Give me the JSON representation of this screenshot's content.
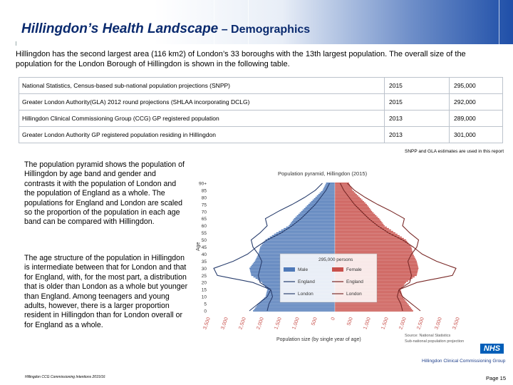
{
  "header": {
    "title_main": "Hillingdon’s Health Landscape",
    "title_sub": " – Demographics"
  },
  "intro": "Hillingdon has the second largest area (116 km2) of London’s 33 boroughs with the 13th largest population. The overall size of the population for the London Borough of Hillingdon is shown in the following table.",
  "table": {
    "rows": [
      {
        "source": "National Statistics, Census-based sub-national population projections (SNPP)",
        "year": "2015",
        "value": "295,000"
      },
      {
        "source": "Greater London Authority(GLA) 2012 round projections (SHLAA incorporating DCLG)",
        "year": "2015",
        "value": "292,000"
      },
      {
        "source": "Hillingdon Clinical Commissioning Group (CCG) GP registered population",
        "year": "2013",
        "value": "289,000"
      },
      {
        "source": "Greater London Authority GP registered population residing in Hillingdon",
        "year": "2013",
        "value": "301,000"
      }
    ],
    "note": "SNPP and GLA estimates are used in this report"
  },
  "paragraphs": {
    "p1": "The population pyramid shows the population of Hillingdon by age band and gender and contrasts it with the population of London and the population of England as a whole. The populations for England and London are scaled so the proportion of the population in each age band can be compared with Hillingdon.",
    "p2": "The age structure of the population in Hillingdon is intermediate between that for London and that for England, with, for the most part, a distribution that is older than London as a whole but younger than England. Among teenagers and young adults, however, there is a larger proportion resident in Hillingdon than for London overall or for England as a whole."
  },
  "chart_data": {
    "type": "bar",
    "orientation": "horizontal-pyramid",
    "title": "Population pyramid, Hillingdon (2015)",
    "ylabel": "Age",
    "xlabel": "Population size (by single year of age)",
    "y_ticks": [
      "90+",
      "85",
      "80",
      "75",
      "70",
      "65",
      "60",
      "55",
      "50",
      "45",
      "40",
      "35",
      "30",
      "25",
      "20",
      "15",
      "10",
      "5",
      "0"
    ],
    "x_ticks": [
      "3,500",
      "3,000",
      "2,500",
      "2,000",
      "1,500",
      "1,000",
      "500",
      "0",
      "500",
      "1,000",
      "1,500",
      "2,000",
      "2,500",
      "3,000",
      "3,500"
    ],
    "xlim": [
      -3500,
      3500
    ],
    "ylim": [
      0,
      90
    ],
    "annotation": "295,000 persons",
    "legend": [
      "Male",
      "Female",
      "England",
      "England",
      "London",
      "London"
    ],
    "source": [
      "Source: National Statistics",
      "Sub-national population projection"
    ],
    "colors": {
      "male": "#4f79b8",
      "female": "#c8504b",
      "outline": "#ffffff"
    },
    "series": [
      {
        "name": "Male",
        "age": [
          0,
          5,
          10,
          15,
          20,
          25,
          30,
          35,
          40,
          45,
          50,
          55,
          60,
          65,
          70,
          75,
          80,
          85,
          90
        ],
        "values": [
          2300,
          2150,
          1950,
          1900,
          2050,
          2350,
          2400,
          2250,
          2150,
          2100,
          1950,
          1650,
          1300,
          1150,
          950,
          750,
          550,
          350,
          250
        ]
      },
      {
        "name": "Female",
        "age": [
          0,
          5,
          10,
          15,
          20,
          25,
          30,
          35,
          40,
          45,
          50,
          55,
          60,
          65,
          70,
          75,
          80,
          85,
          90
        ],
        "values": [
          2200,
          2050,
          1900,
          1850,
          2000,
          2300,
          2350,
          2300,
          2200,
          2150,
          2000,
          1700,
          1400,
          1250,
          1050,
          900,
          700,
          500,
          400
        ]
      },
      {
        "name": "England",
        "age": [
          0,
          5,
          10,
          15,
          20,
          25,
          30,
          35,
          40,
          45,
          50,
          55,
          60,
          65,
          70,
          75,
          80,
          85,
          90
        ],
        "values": [
          1900,
          1850,
          1750,
          1800,
          2100,
          2150,
          2100,
          2050,
          2150,
          2300,
          2350,
          2100,
          1900,
          1950,
          1600,
          1200,
          850,
          550,
          350
        ]
      },
      {
        "name": "London",
        "age": [
          0,
          5,
          10,
          15,
          20,
          25,
          30,
          35,
          40,
          45,
          50,
          55,
          60,
          65,
          70,
          75,
          80,
          85,
          90
        ],
        "values": [
          2400,
          2150,
          1900,
          1800,
          2300,
          3300,
          3400,
          2850,
          2450,
          2200,
          1900,
          1500,
          1200,
          950,
          750,
          550,
          400,
          250,
          150
        ]
      }
    ]
  },
  "branding": {
    "nhs": "NHS",
    "ccg": "Hillingdon Clinical Commissioning Group"
  },
  "footer": {
    "left": "Hillingdon CCG Commissioning Intentions 2015/16",
    "page": "Page 15"
  }
}
